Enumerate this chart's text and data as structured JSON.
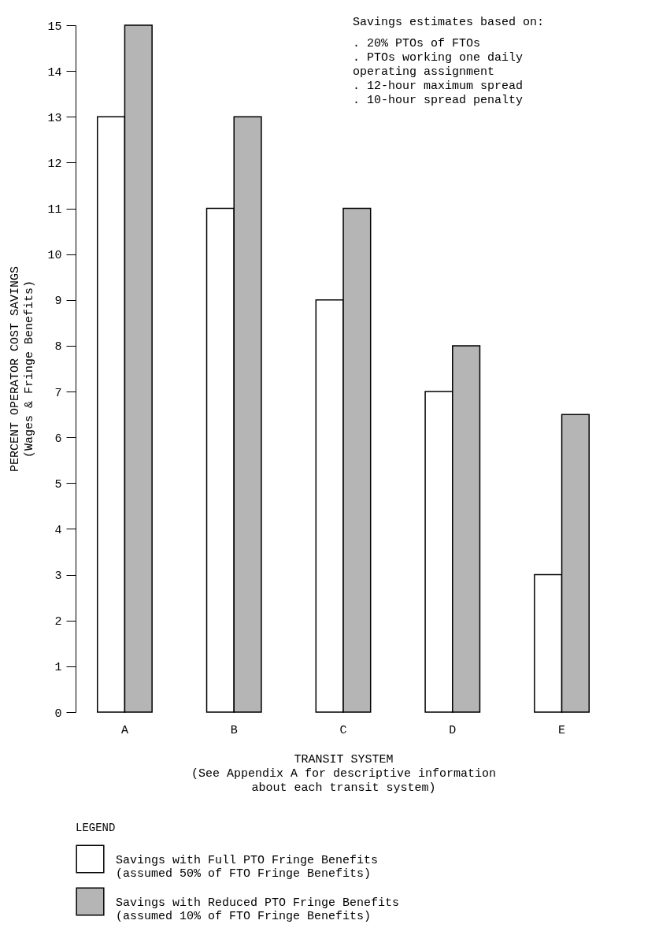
{
  "chart_data": {
    "type": "bar",
    "categories": [
      "A",
      "B",
      "C",
      "D",
      "E"
    ],
    "xlabel": "TRANSIT SYSTEM\n(See Appendix A for descriptive information\nabout each transit system)",
    "ylabel": "PERCENT OPERATOR COST SAVINGS\n(Wages & Fringe Benefits)",
    "legend_title": "LEGEND",
    "series": [
      {
        "name": "Savings with Full PTO Fringe Benefits\n(assumed 50% of FTO Fringe Benefits)",
        "color": "#ffffff",
        "values": [
          13,
          11,
          9,
          7,
          3
        ]
      },
      {
        "name": "Savings with Reduced PTO Fringe Benefits\n(assumed 10% of FTO Fringe Benefits)",
        "color": "#b5b5b5",
        "values": [
          15,
          13,
          11,
          8,
          6.5
        ]
      }
    ],
    "ylim": [
      0,
      15
    ],
    "yticks": [
      0,
      1,
      2,
      3,
      4,
      5,
      6,
      7,
      8,
      9,
      10,
      11,
      12,
      13,
      14,
      15
    ],
    "grid": false,
    "legend": "bottom left",
    "annotations": [
      "Savings estimates based on:",
      "  . 20% PTOs of FTOs",
      "  . PTOs working one daily\n      operating assignment",
      "  . 12-hour maximum spread",
      "  . 10-hour spread penalty"
    ]
  }
}
